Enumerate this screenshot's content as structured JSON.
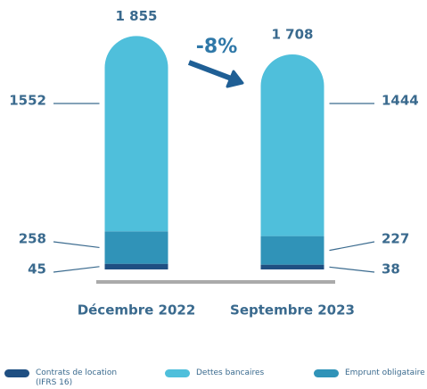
{
  "chart_data": {
    "type": "stacked_bar",
    "categories": [
      "Décembre 2022",
      "Septembre 2023"
    ],
    "series": [
      {
        "name": "Contrats de location (IFRS 16)",
        "color": "#1f4f82",
        "values": [
          45,
          38
        ]
      },
      {
        "name": "Emprunt obligataire",
        "color": "#3093b8",
        "values": [
          258,
          227
        ]
      },
      {
        "name": "Dettes bancaires",
        "color": "#4fbfdb",
        "values": [
          1552,
          1444
        ]
      }
    ],
    "totals": [
      1855,
      1708
    ],
    "total_labels": [
      "1 855",
      "1 708"
    ],
    "annotation": "-8%",
    "ylim": [
      0,
      1900
    ],
    "legend": "bottom"
  }
}
